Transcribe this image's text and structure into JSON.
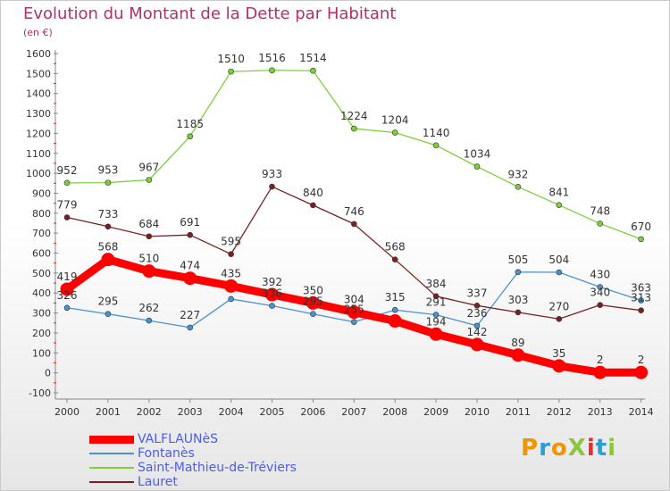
{
  "title": "Evolution du Montant de la Dette par Habitant",
  "subtitle": "(en €)",
  "logo": {
    "text": "ProXiti",
    "colors": [
      "#f29400",
      "#2a9fd6",
      "#f29400",
      "#8cc63f",
      "#e2312c",
      "#2a9fd6",
      "#8cc63f"
    ]
  },
  "chart_data": {
    "type": "line",
    "categories": [
      "2000",
      "2001",
      "2002",
      "2003",
      "2004",
      "2005",
      "2006",
      "2007",
      "2008",
      "2009",
      "2010",
      "2011",
      "2012",
      "2013",
      "2014"
    ],
    "ylim": [
      -100,
      1600
    ],
    "yticks": [
      -100,
      0,
      100,
      200,
      300,
      400,
      500,
      600,
      700,
      800,
      900,
      1000,
      1100,
      1200,
      1300,
      1400,
      1500,
      1600
    ],
    "grid": false,
    "legend_position": "bottom-left",
    "series": [
      {
        "name": "VALFLAUNèS",
        "color": "#ff0000",
        "values": [
          419,
          568,
          510,
          474,
          435,
          392,
          350,
          304,
          260,
          194,
          142,
          89,
          35,
          2,
          2
        ]
      },
      {
        "name": "Fontanès",
        "color": "#4a93d0",
        "values": [
          326,
          295,
          262,
          227,
          370,
          336,
          295,
          255,
          315,
          291,
          236,
          505,
          504,
          430,
          363
        ]
      },
      {
        "name": "Saint-Mathieu-de-Tréviers",
        "color": "#7dcf3e",
        "values": [
          952,
          953,
          967,
          1185,
          1510,
          1516,
          1514,
          1224,
          1204,
          1140,
          1034,
          932,
          841,
          748,
          670
        ]
      },
      {
        "name": "Lauret",
        "color": "#7a2020",
        "values": [
          779,
          733,
          684,
          691,
          595,
          933,
          840,
          746,
          568,
          384,
          337,
          303,
          270,
          340,
          313
        ]
      }
    ],
    "data_labels": [
      [
        "419",
        "568",
        "510",
        "474",
        "435",
        "392",
        "350",
        "304",
        "",
        "194",
        "142",
        "89",
        "35",
        "2",
        "2"
      ],
      [
        "326",
        "295",
        "262",
        "227",
        "",
        "336",
        "295",
        "255",
        "315",
        "291",
        "236",
        "505",
        "504",
        "430",
        "363"
      ],
      [
        "952",
        "953",
        "967",
        "1185",
        "1510",
        "1516",
        "1514",
        "1224",
        "1204",
        "1140",
        "1034",
        "932",
        "841",
        "748",
        "670"
      ],
      [
        "779",
        "733",
        "684",
        "691",
        "595",
        "933",
        "840",
        "746",
        "568",
        "384",
        "337",
        "303",
        "270",
        "340",
        "313"
      ]
    ]
  }
}
